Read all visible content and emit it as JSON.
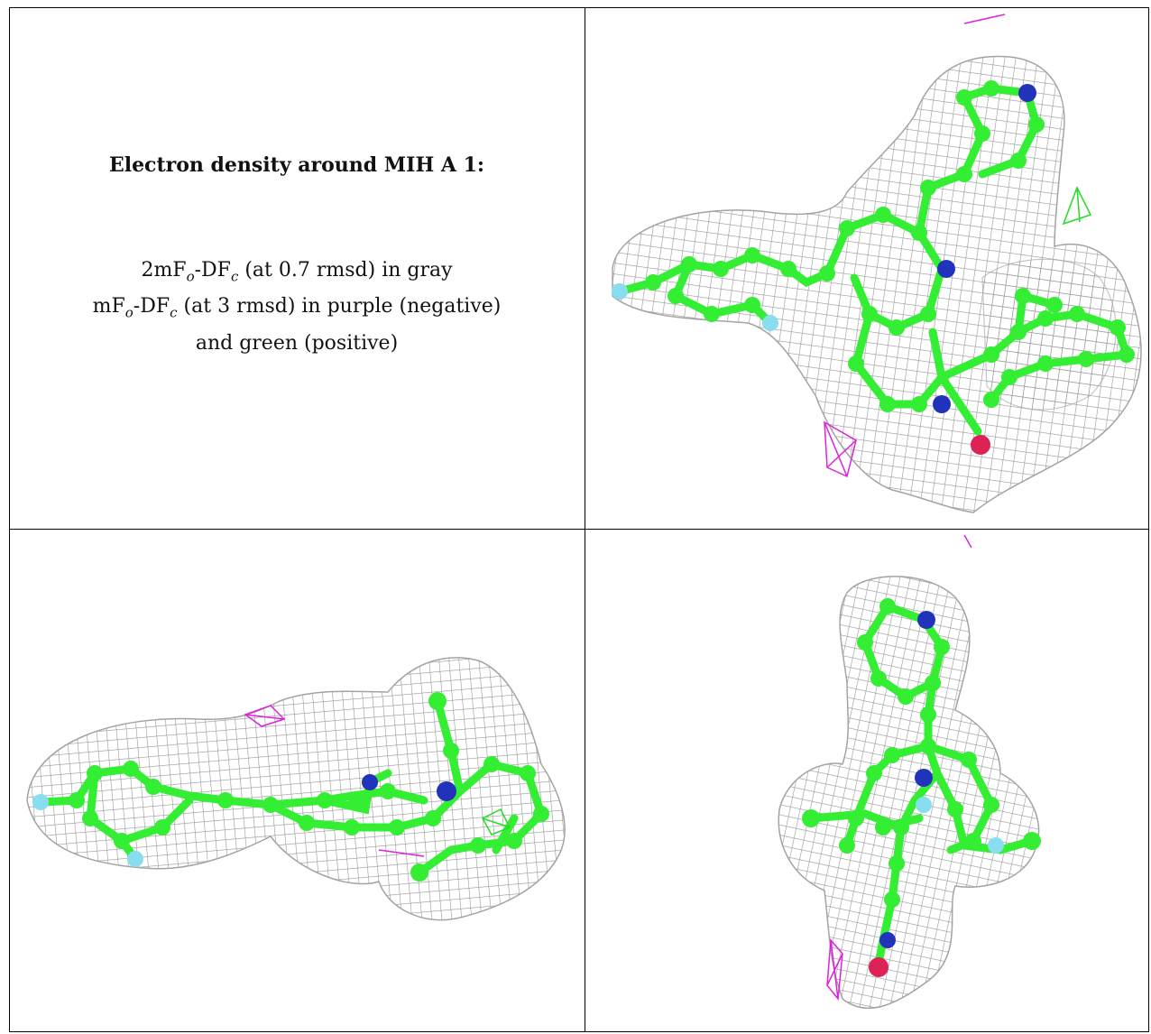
{
  "caption": {
    "title": "Electron density around MIH A 1:",
    "legend": [
      {
        "prefix": "2mF",
        "sub1": "o",
        "mid": "-DF",
        "sub2": "c",
        "suffix": " (at 0.7 rmsd) in gray"
      },
      {
        "prefix": "mF",
        "sub1": "o",
        "mid": "-DF",
        "sub2": "c",
        "suffix": " (at 3 rmsd) in purple (negative)"
      },
      {
        "prefix": "and green (positive)",
        "sub1": "",
        "mid": "",
        "sub2": "",
        "suffix": ""
      }
    ]
  },
  "colors": {
    "mesh": "#8c8c8c",
    "carbon": "#33ee33",
    "nitrogen": "#2233bb",
    "oxygen": "#dd2255",
    "fluorine": "#88ddee",
    "negative_density": "#dd22dd",
    "positive_density": "#22dd22",
    "border": "#000000"
  },
  "panels": [
    {
      "name": "view-top",
      "icon": "molecule-density-view-1"
    },
    {
      "name": "view-side",
      "icon": "molecule-density-view-2"
    },
    {
      "name": "view-end",
      "icon": "molecule-density-view-3"
    }
  ]
}
